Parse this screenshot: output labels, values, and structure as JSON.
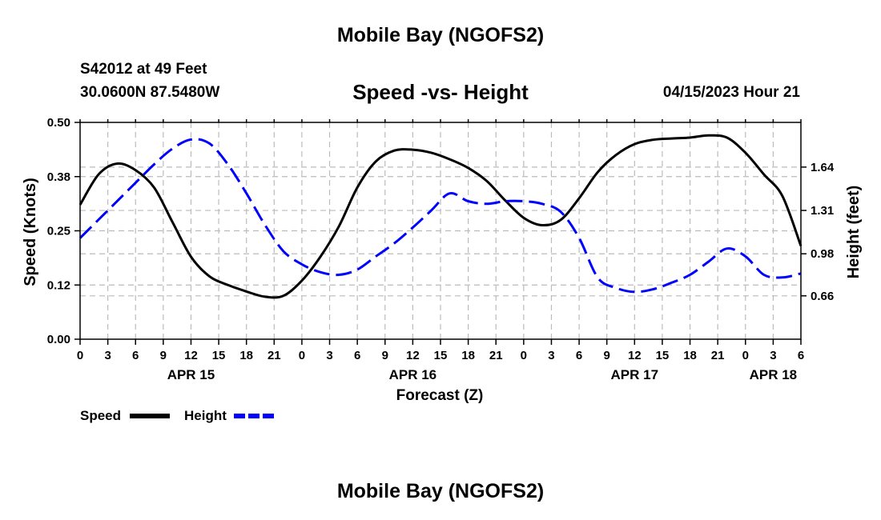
{
  "header": {
    "title": "Mobile Bay (NGOFS2)",
    "station": "S42012 at 49 Feet",
    "coords": "30.0600N  87.5480W",
    "subtitle": "Speed -vs- Height",
    "datetime": "04/15/2023 Hour 21"
  },
  "footer": {
    "title": "Mobile Bay (NGOFS2)"
  },
  "chart_data": {
    "type": "line",
    "xlabel": "Forecast (Z)",
    "ylabel_left": "Speed (Knots)",
    "ylabel_right": "Height (feet)",
    "x_range": [
      0,
      78
    ],
    "x_ticks": [
      {
        "x": 0,
        "label": "0"
      },
      {
        "x": 3,
        "label": "3"
      },
      {
        "x": 6,
        "label": "6"
      },
      {
        "x": 9,
        "label": "9"
      },
      {
        "x": 12,
        "label": "12"
      },
      {
        "x": 15,
        "label": "15"
      },
      {
        "x": 18,
        "label": "18"
      },
      {
        "x": 21,
        "label": "21"
      },
      {
        "x": 24,
        "label": "0"
      },
      {
        "x": 27,
        "label": "3"
      },
      {
        "x": 30,
        "label": "6"
      },
      {
        "x": 33,
        "label": "9"
      },
      {
        "x": 36,
        "label": "12"
      },
      {
        "x": 39,
        "label": "15"
      },
      {
        "x": 42,
        "label": "18"
      },
      {
        "x": 45,
        "label": "21"
      },
      {
        "x": 48,
        "label": "0"
      },
      {
        "x": 51,
        "label": "3"
      },
      {
        "x": 54,
        "label": "6"
      },
      {
        "x": 57,
        "label": "9"
      },
      {
        "x": 60,
        "label": "12"
      },
      {
        "x": 63,
        "label": "15"
      },
      {
        "x": 66,
        "label": "18"
      },
      {
        "x": 69,
        "label": "21"
      },
      {
        "x": 72,
        "label": "0"
      },
      {
        "x": 75,
        "label": "3"
      },
      {
        "x": 78,
        "label": "6"
      }
    ],
    "date_labels": [
      {
        "x": 12,
        "label": "APR 15"
      },
      {
        "x": 36,
        "label": "APR 16"
      },
      {
        "x": 60,
        "label": "APR 17"
      },
      {
        "x": 75,
        "label": "APR 18"
      }
    ],
    "y_left": {
      "range": [
        0,
        0.5
      ],
      "ticks": [
        0,
        0.125,
        0.25,
        0.375,
        0.5
      ],
      "tick_labels": [
        "0.00",
        "0.12",
        "0.25",
        "0.38",
        "0.50"
      ]
    },
    "y_right": {
      "range": [
        0.33,
        1.98
      ],
      "ticks": [
        0.66,
        0.98,
        1.31,
        1.64
      ],
      "tick_labels": [
        "0.66",
        "0.98",
        "1.31",
        "1.64"
      ]
    },
    "grid": true,
    "series": [
      {
        "name": "Speed",
        "axis": "left",
        "color": "#000000",
        "dashed": false,
        "points": [
          [
            0,
            0.31
          ],
          [
            2,
            0.38
          ],
          [
            4,
            0.405
          ],
          [
            6,
            0.39
          ],
          [
            8,
            0.35
          ],
          [
            10,
            0.27
          ],
          [
            12,
            0.19
          ],
          [
            14,
            0.145
          ],
          [
            16,
            0.125
          ],
          [
            18,
            0.11
          ],
          [
            20,
            0.098
          ],
          [
            22,
            0.1
          ],
          [
            24,
            0.135
          ],
          [
            26,
            0.19
          ],
          [
            28,
            0.26
          ],
          [
            30,
            0.35
          ],
          [
            32,
            0.41
          ],
          [
            34,
            0.435
          ],
          [
            36,
            0.437
          ],
          [
            38,
            0.43
          ],
          [
            40,
            0.415
          ],
          [
            42,
            0.395
          ],
          [
            44,
            0.365
          ],
          [
            46,
            0.32
          ],
          [
            48,
            0.28
          ],
          [
            50,
            0.263
          ],
          [
            52,
            0.275
          ],
          [
            54,
            0.325
          ],
          [
            56,
            0.385
          ],
          [
            58,
            0.425
          ],
          [
            60,
            0.45
          ],
          [
            62,
            0.46
          ],
          [
            64,
            0.463
          ],
          [
            66,
            0.465
          ],
          [
            68,
            0.47
          ],
          [
            70,
            0.465
          ],
          [
            72,
            0.43
          ],
          [
            74,
            0.38
          ],
          [
            76,
            0.33
          ],
          [
            78,
            0.215
          ]
        ]
      },
      {
        "name": "Height",
        "axis": "right",
        "color": "#0000ff",
        "dashed": true,
        "points": [
          [
            0,
            1.1
          ],
          [
            2,
            1.24
          ],
          [
            4,
            1.38
          ],
          [
            6,
            1.52
          ],
          [
            8,
            1.66
          ],
          [
            10,
            1.78
          ],
          [
            12,
            1.85
          ],
          [
            14,
            1.82
          ],
          [
            16,
            1.66
          ],
          [
            18,
            1.44
          ],
          [
            20,
            1.2
          ],
          [
            22,
            1.0
          ],
          [
            24,
            0.9
          ],
          [
            26,
            0.84
          ],
          [
            28,
            0.82
          ],
          [
            30,
            0.86
          ],
          [
            32,
            0.96
          ],
          [
            34,
            1.06
          ],
          [
            36,
            1.18
          ],
          [
            38,
            1.31
          ],
          [
            40,
            1.44
          ],
          [
            42,
            1.38
          ],
          [
            44,
            1.36
          ],
          [
            46,
            1.38
          ],
          [
            48,
            1.38
          ],
          [
            50,
            1.36
          ],
          [
            52,
            1.3
          ],
          [
            54,
            1.1
          ],
          [
            56,
            0.8
          ],
          [
            58,
            0.72
          ],
          [
            60,
            0.69
          ],
          [
            62,
            0.71
          ],
          [
            64,
            0.76
          ],
          [
            66,
            0.82
          ],
          [
            68,
            0.92
          ],
          [
            70,
            1.02
          ],
          [
            72,
            0.96
          ],
          [
            74,
            0.82
          ],
          [
            76,
            0.8
          ],
          [
            78,
            0.83
          ]
        ]
      }
    ],
    "legend": {
      "placement": "bottom-left",
      "entries": [
        "Speed",
        "Height"
      ]
    }
  }
}
